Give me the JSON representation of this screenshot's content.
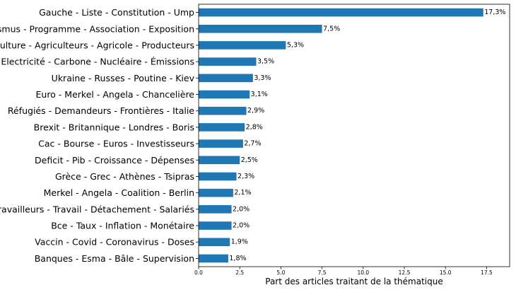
{
  "chart_data": {
    "type": "bar",
    "orientation": "horizontal",
    "title": "",
    "xlabel": "Part des articles traitant de la thématique",
    "ylabel": "",
    "xlim": [
      0,
      18.9
    ],
    "xticks": [
      0,
      2.5,
      5,
      7.5,
      10,
      12.5,
      15,
      17.5
    ],
    "xtick_labels": [
      "0.0",
      "2.5",
      "5.0",
      "7.5",
      "10.0",
      "12.5",
      "15.0",
      "17.5"
    ],
    "bar_color": "#1f77b4",
    "grid": false,
    "categories": [
      "Gauche - Liste - Constitution - Ump",
      "Erasmus - Programme - Association - Exposition",
      "Agriculture - Agriculteurs - Agricole - Producteurs",
      "Electricité - Carbone - Nucléaire - Émissions",
      "Ukraine - Russes - Poutine - Kiev",
      "Euro - Merkel - Angela - Chancelière",
      "Réfugiés - Demandeurs - Frontières - Italie",
      "Brexit - Britannique - Londres - Boris",
      "Cac - Bourse - Euros - Investisseurs",
      "Deficit - Pib - Croissance - Dépenses",
      "Grèce - Grec - Athènes - Tsipras",
      "Merkel - Angela - Coalition - Berlin",
      "Travailleurs - Travail - Détachement - Salariés",
      "Bce - Taux - Inflation - Monétaire",
      "Vaccin - Covid - Coronavirus - Doses",
      "Banques - Esma - Bâle - Supervision"
    ],
    "values": [
      17.3,
      7.5,
      5.3,
      3.5,
      3.3,
      3.1,
      2.9,
      2.8,
      2.7,
      2.5,
      2.3,
      2.1,
      2.0,
      2.0,
      1.9,
      1.8
    ],
    "value_labels": [
      "17,3%",
      "7,5%",
      "5,3%",
      "3,5%",
      "3,3%",
      "3,1%",
      "2,9%",
      "2,8%",
      "2,7%",
      "2,5%",
      "2,3%",
      "2,1%",
      "2,0%",
      "2,0%",
      "1,9%",
      "1,8%"
    ]
  }
}
